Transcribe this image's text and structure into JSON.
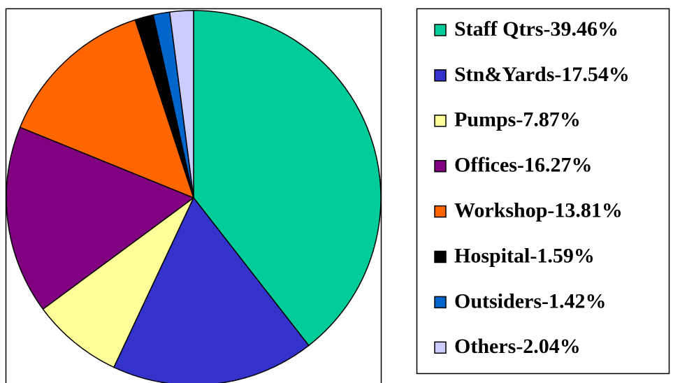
{
  "chart_data": {
    "type": "pie",
    "categories": [
      "Staff Qtrs-39.46%",
      "Stn&Yards-17.54%",
      "Pumps-7.87%",
      "Offices-16.27%",
      "Workshop-13.81%",
      "Hospital-1.59%",
      "Outsiders-1.42%",
      "Others-2.04%"
    ],
    "values": [
      39.46,
      17.54,
      7.87,
      16.27,
      13.81,
      1.59,
      1.42,
      2.04
    ],
    "colors": [
      "#00cc99",
      "#3333cc",
      "#ffff99",
      "#800080",
      "#ff6600",
      "#000000",
      "#0066cc",
      "#ccccff"
    ],
    "legend": "right"
  }
}
